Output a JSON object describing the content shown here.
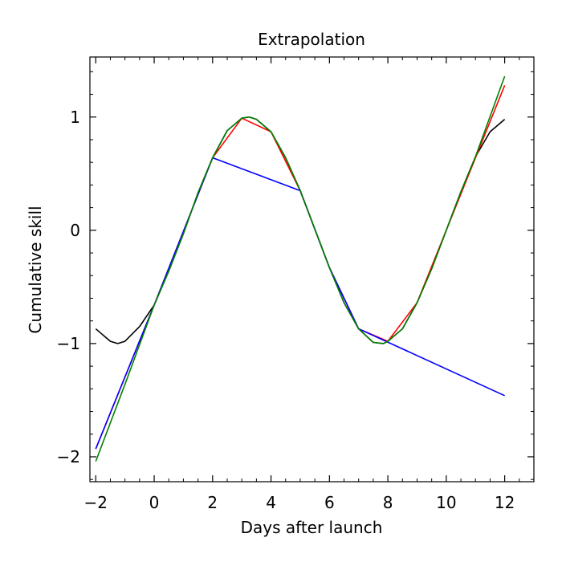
{
  "chart_data": {
    "type": "line",
    "title": "Extrapolation",
    "xlabel": "Days after launch",
    "ylabel": "Cumulative skill",
    "xlim": [
      -2.2,
      13.0
    ],
    "ylim": [
      -2.22,
      1.53
    ],
    "xticks": [
      -2,
      0,
      2,
      4,
      6,
      8,
      10,
      12
    ],
    "xtick_labels": [
      "−2",
      "0",
      "2",
      "4",
      "6",
      "8",
      "10",
      "12"
    ],
    "yticks": [
      -2,
      -1,
      0,
      1
    ],
    "ytick_labels": [
      "−2",
      "−1",
      "0",
      "1"
    ],
    "x_minor_step": 0.5,
    "y_minor_step": 0.2,
    "grid": false,
    "legend": "none",
    "series": [
      {
        "color": "#000000",
        "x": [
          -2,
          -1.5,
          -1.25,
          -1,
          -0.5,
          0,
          0.5,
          1,
          1.5,
          2,
          2.5,
          3,
          3.25,
          3.5,
          4,
          4.5,
          5,
          5.5,
          6,
          6.5,
          7,
          7.5,
          7.85,
          8,
          8.5,
          9,
          9.5,
          10,
          10.5,
          11,
          11.5,
          12
        ],
        "y": [
          -0.87,
          -0.98,
          -1.0,
          -0.98,
          -0.85,
          -0.66,
          -0.36,
          -0.03,
          0.33,
          0.64,
          0.88,
          0.99,
          1.0,
          0.98,
          0.87,
          0.64,
          0.35,
          0.01,
          -0.33,
          -0.64,
          -0.87,
          -0.99,
          -1.0,
          -0.98,
          -0.87,
          -0.64,
          -0.34,
          0.0,
          0.34,
          0.65,
          0.87,
          0.98
        ]
      },
      {
        "color": "#ff0000",
        "x": [
          -2,
          0,
          2,
          3,
          4,
          5,
          6,
          7,
          8,
          9,
          12
        ],
        "y": [
          -1.93,
          -0.66,
          0.64,
          0.99,
          0.87,
          0.35,
          -0.33,
          -0.87,
          -0.98,
          -0.64,
          1.28
        ]
      },
      {
        "color": "#0000ff",
        "x": [
          -2,
          0,
          2,
          5,
          6,
          7,
          12
        ],
        "y": [
          -1.93,
          -0.66,
          0.64,
          0.35,
          -0.33,
          -0.87,
          -1.46
        ]
      },
      {
        "color": "#008000",
        "x": [
          -2,
          -1,
          0,
          0.5,
          1,
          1.5,
          2,
          2.5,
          3,
          3.25,
          3.5,
          4,
          4.5,
          5,
          5.5,
          6,
          6.5,
          7,
          7.5,
          7.85,
          8,
          8.5,
          9,
          9.5,
          10,
          10.5,
          11,
          12
        ],
        "y": [
          -2.04,
          -1.36,
          -0.66,
          -0.36,
          -0.03,
          0.33,
          0.64,
          0.88,
          0.99,
          1.0,
          0.98,
          0.87,
          0.64,
          0.35,
          0.01,
          -0.33,
          -0.64,
          -0.87,
          -0.99,
          -1.0,
          -0.98,
          -0.87,
          -0.64,
          -0.34,
          0.0,
          0.34,
          0.65,
          1.36
        ]
      }
    ]
  }
}
